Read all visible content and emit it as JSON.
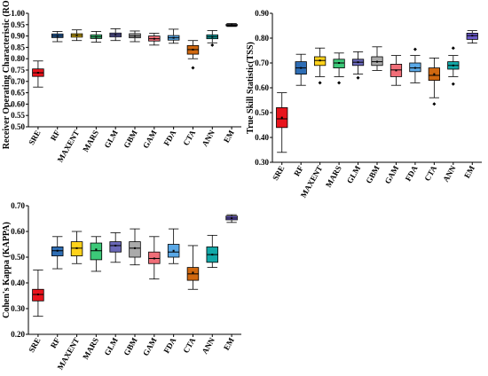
{
  "colors": {
    "SRE": "#e8141c",
    "RF": "#2e6db4",
    "MAXENT": "#ffd21a",
    "MARS": "#3cc878",
    "GLM": "#6a68b8",
    "GBM": "#aaaaaa",
    "GAM": "#f06e78",
    "FDA": "#5aa8e6",
    "CTA": "#d06810",
    "ANN": "#12a8a8",
    "EM": "#6a5ac8"
  },
  "chart_data": [
    {
      "type": "box",
      "title": "",
      "xlabel": "",
      "ylabel": "Receiver Operating Characteristic (ROC)",
      "ylim": [
        0.5,
        1.0
      ],
      "yticks": [
        "0.50",
        "0.55",
        "0.60",
        "0.65",
        "0.70",
        "0.75",
        "0.80",
        "0.85",
        "0.90",
        "0.95",
        "1.00"
      ],
      "categories": [
        "SRE",
        "RF",
        "MAXENT",
        "MARS",
        "GLM",
        "GBM",
        "GAM",
        "FDA",
        "CTA",
        "ANN",
        "EM"
      ],
      "boxes": [
        {
          "min": 0.675,
          "q1": 0.722,
          "median": 0.738,
          "q3": 0.755,
          "max": 0.79,
          "mean": 0.738,
          "outliers": []
        },
        {
          "min": 0.875,
          "q1": 0.893,
          "median": 0.9,
          "q3": 0.909,
          "max": 0.92,
          "mean": 0.9,
          "outliers": []
        },
        {
          "min": 0.88,
          "q1": 0.895,
          "median": 0.903,
          "q3": 0.91,
          "max": 0.927,
          "mean": 0.903,
          "outliers": []
        },
        {
          "min": 0.873,
          "q1": 0.889,
          "median": 0.896,
          "q3": 0.905,
          "max": 0.92,
          "mean": 0.896,
          "outliers": []
        },
        {
          "min": 0.88,
          "q1": 0.896,
          "median": 0.905,
          "q3": 0.913,
          "max": 0.932,
          "mean": 0.905,
          "outliers": []
        },
        {
          "min": 0.875,
          "q1": 0.892,
          "median": 0.9,
          "q3": 0.91,
          "max": 0.922,
          "mean": 0.9,
          "outliers": []
        },
        {
          "min": 0.86,
          "q1": 0.878,
          "median": 0.888,
          "q3": 0.9,
          "max": 0.912,
          "mean": 0.888,
          "outliers": []
        },
        {
          "min": 0.868,
          "q1": 0.882,
          "median": 0.892,
          "q3": 0.902,
          "max": 0.93,
          "mean": 0.892,
          "outliers": []
        },
        {
          "min": 0.8,
          "q1": 0.82,
          "median": 0.84,
          "q3": 0.858,
          "max": 0.88,
          "mean": 0.84,
          "outliers": [
            0.76
          ]
        },
        {
          "min": 0.87,
          "q1": 0.888,
          "median": 0.896,
          "q3": 0.905,
          "max": 0.924,
          "mean": 0.896,
          "outliers": [
            0.86
          ]
        },
        {
          "min": 0.942,
          "q1": 0.945,
          "median": 0.948,
          "q3": 0.951,
          "max": 0.955,
          "mean": 0.948,
          "outliers": []
        }
      ]
    },
    {
      "type": "box",
      "title": "",
      "xlabel": "",
      "ylabel": "True Skill Statistic(TSS)",
      "ylim": [
        0.3,
        0.9
      ],
      "yticks": [
        "0.30",
        "0.40",
        "0.50",
        "0.60",
        "0.70",
        "0.80",
        "0.90"
      ],
      "categories": [
        "SRE",
        "RF",
        "MAXENT",
        "MARS",
        "GLM",
        "GBM",
        "GAM",
        "FDA",
        "CTA",
        "ANN",
        "EM"
      ],
      "boxes": [
        {
          "min": 0.34,
          "q1": 0.44,
          "median": 0.475,
          "q3": 0.52,
          "max": 0.58,
          "mean": 0.48,
          "outliers": []
        },
        {
          "min": 0.61,
          "q1": 0.655,
          "median": 0.68,
          "q3": 0.705,
          "max": 0.735,
          "mean": 0.68,
          "outliers": []
        },
        {
          "min": 0.645,
          "q1": 0.69,
          "median": 0.71,
          "q3": 0.725,
          "max": 0.76,
          "mean": 0.71,
          "outliers": [
            0.62
          ]
        },
        {
          "min": 0.645,
          "q1": 0.68,
          "median": 0.7,
          "q3": 0.715,
          "max": 0.74,
          "mean": 0.7,
          "outliers": [
            0.62
          ]
        },
        {
          "min": 0.655,
          "q1": 0.69,
          "median": 0.703,
          "q3": 0.715,
          "max": 0.745,
          "mean": 0.703,
          "outliers": [
            0.64
          ]
        },
        {
          "min": 0.67,
          "q1": 0.69,
          "median": 0.705,
          "q3": 0.725,
          "max": 0.765,
          "mean": 0.705,
          "outliers": []
        },
        {
          "min": 0.61,
          "q1": 0.645,
          "median": 0.672,
          "q3": 0.695,
          "max": 0.73,
          "mean": 0.67,
          "outliers": []
        },
        {
          "min": 0.62,
          "q1": 0.665,
          "median": 0.68,
          "q3": 0.7,
          "max": 0.73,
          "mean": 0.68,
          "outliers": [
            0.755
          ]
        },
        {
          "min": 0.56,
          "q1": 0.63,
          "median": 0.65,
          "q3": 0.68,
          "max": 0.72,
          "mean": 0.655,
          "outliers": [
            0.535
          ]
        },
        {
          "min": 0.645,
          "q1": 0.675,
          "median": 0.69,
          "q3": 0.705,
          "max": 0.73,
          "mean": 0.69,
          "outliers": [
            0.76,
            0.615
          ]
        },
        {
          "min": 0.78,
          "q1": 0.795,
          "median": 0.81,
          "q3": 0.82,
          "max": 0.83,
          "mean": 0.81,
          "outliers": []
        }
      ]
    },
    {
      "type": "box",
      "title": "",
      "xlabel": "",
      "ylabel": "Cohen's Kappa (KAPPA)",
      "ylim": [
        0.2,
        0.7
      ],
      "yticks": [
        "0.20",
        "0.30",
        "0.40",
        "0.50",
        "0.60",
        "0.70"
      ],
      "categories": [
        "SRE",
        "RF",
        "MAXENT",
        "MARS",
        "GLM",
        "GBM",
        "GAM",
        "FDA",
        "CTA",
        "ANN",
        "EM"
      ],
      "boxes": [
        {
          "min": 0.27,
          "q1": 0.33,
          "median": 0.355,
          "q3": 0.375,
          "max": 0.45,
          "mean": 0.355,
          "outliers": []
        },
        {
          "min": 0.455,
          "q1": 0.505,
          "median": 0.525,
          "q3": 0.54,
          "max": 0.58,
          "mean": 0.525,
          "outliers": []
        },
        {
          "min": 0.475,
          "q1": 0.505,
          "median": 0.535,
          "q3": 0.56,
          "max": 0.6,
          "mean": 0.535,
          "outliers": []
        },
        {
          "min": 0.445,
          "q1": 0.49,
          "median": 0.525,
          "q3": 0.555,
          "max": 0.58,
          "mean": 0.53,
          "outliers": []
        },
        {
          "min": 0.48,
          "q1": 0.52,
          "median": 0.545,
          "q3": 0.56,
          "max": 0.595,
          "mean": 0.545,
          "outliers": []
        },
        {
          "min": 0.47,
          "q1": 0.5,
          "median": 0.535,
          "q3": 0.56,
          "max": 0.61,
          "mean": 0.535,
          "outliers": []
        },
        {
          "min": 0.415,
          "q1": 0.475,
          "median": 0.495,
          "q3": 0.52,
          "max": 0.58,
          "mean": 0.495,
          "outliers": []
        },
        {
          "min": 0.475,
          "q1": 0.5,
          "median": 0.52,
          "q3": 0.55,
          "max": 0.61,
          "mean": 0.525,
          "outliers": []
        },
        {
          "min": 0.375,
          "q1": 0.41,
          "median": 0.435,
          "q3": 0.46,
          "max": 0.545,
          "mean": 0.44,
          "outliers": []
        },
        {
          "min": 0.46,
          "q1": 0.48,
          "median": 0.51,
          "q3": 0.54,
          "max": 0.585,
          "mean": 0.51,
          "outliers": []
        },
        {
          "min": 0.635,
          "q1": 0.645,
          "median": 0.652,
          "q3": 0.66,
          "max": 0.665,
          "mean": 0.652,
          "outliers": []
        }
      ]
    }
  ]
}
